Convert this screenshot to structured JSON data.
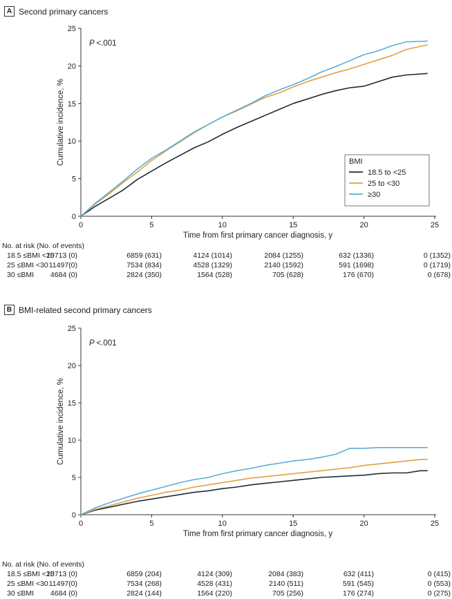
{
  "panels": [
    {
      "letter": "A",
      "title": "Second primary cancers",
      "pvalue_italic": "P",
      "pvalue_rest": "<.001",
      "ylabel": "Cumulative incidence, %",
      "xlabel": "Time from first primary cancer diagnosis, y",
      "risk_title": "No. at risk (No. of events)",
      "risk_rows": [
        {
          "label": "18.5 ≤BMI <25",
          "cells": [
            "10713 (0)",
            "6859 (631)",
            "4124 (1014)",
            "2084 (1255)",
            "632 (1336)",
            "0 (1352)"
          ]
        },
        {
          "label": "25 ≤BMI <30",
          "cells": [
            "11497(0)",
            "7534 (834)",
            "4528 (1329)",
            "2140 (1592)",
            "591 (1698)",
            "0 (1719)"
          ]
        },
        {
          "label": "30 ≤BMI",
          "cells": [
            "4684 (0)",
            "2824 (350)",
            "1564 (528)",
            "705 (628)",
            "176 (670)",
            "0 (678)"
          ]
        }
      ]
    },
    {
      "letter": "B",
      "title": "BMI-related second primary cancers",
      "pvalue_italic": "P",
      "pvalue_rest": "<.001",
      "ylabel": "Cumulative incidence, %",
      "xlabel": "Time from first primary cancer diagnosis, y",
      "risk_title": "No. at risk (No. of events)",
      "risk_rows": [
        {
          "label": "18.5 ≤BMI <25",
          "cells": [
            "10713 (0)",
            "6859 (204)",
            "4124 (309)",
            "2084 (383)",
            "632 (411)",
            "0 (415)"
          ]
        },
        {
          "label": "25 ≤BMI <30",
          "cells": [
            "11497(0)",
            "7534 (268)",
            "4528 (431)",
            "2140 (511)",
            "591 (545)",
            "0 (553)"
          ]
        },
        {
          "label": "30 ≤BMI",
          "cells": [
            "4684 (0)",
            "2824 (144)",
            "1564 (220)",
            "705 (256)",
            "176 (274)",
            "0 (275)"
          ]
        }
      ]
    }
  ],
  "legend": {
    "title": "BMI",
    "entries": [
      "18.5 to <25",
      "25 to <30",
      "≥30"
    ]
  },
  "colors": {
    "normal": "#1b2a3a",
    "overweight": "#e0a040",
    "obese": "#5aaed6",
    "axis": "#333333"
  },
  "chart_data": [
    {
      "type": "line",
      "title": "Second primary cancers",
      "xlabel": "Time from first primary cancer diagnosis, y",
      "ylabel": "Cumulative incidence, %",
      "xlim": [
        0,
        25
      ],
      "ylim": [
        0,
        25
      ],
      "xticks": [
        0,
        5,
        10,
        15,
        20,
        25
      ],
      "yticks": [
        0,
        5,
        10,
        15,
        20,
        25
      ],
      "legend": "right",
      "series": [
        {
          "name": "18.5 to <25",
          "color": "#1b2a3a",
          "x": [
            0,
            1,
            2,
            3,
            4,
            5,
            6,
            7,
            8,
            9,
            10,
            11,
            12,
            13,
            14,
            15,
            16,
            17,
            18,
            19,
            20,
            21,
            22,
            23,
            24.5
          ],
          "y": [
            0,
            1.3,
            2.4,
            3.5,
            4.9,
            6.0,
            7.1,
            8.1,
            9.1,
            9.9,
            10.9,
            11.8,
            12.6,
            13.4,
            14.2,
            15.0,
            15.6,
            16.2,
            16.7,
            17.1,
            17.3,
            17.9,
            18.5,
            18.8,
            19.0
          ]
        },
        {
          "name": "25 to <30",
          "color": "#e0a040",
          "x": [
            0,
            1,
            2,
            3,
            4,
            5,
            6,
            7,
            8,
            9,
            10,
            11,
            12,
            13,
            14,
            15,
            16,
            17,
            18,
            19,
            20,
            21,
            22,
            23,
            24.5
          ],
          "y": [
            0,
            1.6,
            3.0,
            4.5,
            5.9,
            7.4,
            8.7,
            9.9,
            11.1,
            12.2,
            13.2,
            14.0,
            14.9,
            15.8,
            16.4,
            17.2,
            17.9,
            18.5,
            19.1,
            19.6,
            20.2,
            20.8,
            21.4,
            22.2,
            22.8
          ]
        },
        {
          "name": "≥30",
          "color": "#5aaed6",
          "x": [
            0,
            1,
            2,
            3,
            4,
            5,
            6,
            7,
            8,
            9,
            10,
            11,
            12,
            13,
            14,
            15,
            16,
            17,
            18,
            19,
            20,
            21,
            22,
            23,
            24.5
          ],
          "y": [
            0,
            1.7,
            3.2,
            4.7,
            6.3,
            7.7,
            8.8,
            10.0,
            11.2,
            12.2,
            13.2,
            14.1,
            15.0,
            16.0,
            16.8,
            17.5,
            18.3,
            19.2,
            19.9,
            20.7,
            21.5,
            22.0,
            22.7,
            23.2,
            23.3
          ]
        }
      ]
    },
    {
      "type": "line",
      "title": "BMI-related second primary cancers",
      "xlabel": "Time from first primary cancer diagnosis, y",
      "ylabel": "Cumulative incidence, %",
      "xlim": [
        0,
        25
      ],
      "ylim": [
        0,
        25
      ],
      "xticks": [
        0,
        5,
        10,
        15,
        20,
        25
      ],
      "yticks": [
        0,
        5,
        10,
        15,
        20,
        25
      ],
      "series": [
        {
          "name": "18.5 to <25",
          "color": "#1b2a3a",
          "x": [
            0,
            1,
            2,
            3,
            4,
            5,
            6,
            7,
            8,
            9,
            10,
            11,
            12,
            13,
            14,
            15,
            16,
            17,
            18,
            19,
            20,
            21,
            22,
            23,
            24,
            24.5
          ],
          "y": [
            0,
            0.6,
            1.0,
            1.4,
            1.8,
            2.1,
            2.4,
            2.7,
            3.0,
            3.2,
            3.5,
            3.7,
            4.0,
            4.2,
            4.4,
            4.6,
            4.8,
            5.0,
            5.1,
            5.2,
            5.3,
            5.5,
            5.6,
            5.6,
            5.9,
            5.9
          ]
        },
        {
          "name": "25 to <30",
          "color": "#e0a040",
          "x": [
            0,
            1,
            2,
            3,
            4,
            5,
            6,
            7,
            8,
            9,
            10,
            11,
            12,
            13,
            14,
            15,
            16,
            17,
            18,
            19,
            20,
            21,
            22,
            23,
            24,
            24.5
          ],
          "y": [
            0,
            0.7,
            1.2,
            1.7,
            2.2,
            2.6,
            3.0,
            3.3,
            3.7,
            4.0,
            4.3,
            4.6,
            4.9,
            5.1,
            5.3,
            5.5,
            5.7,
            5.9,
            6.1,
            6.3,
            6.6,
            6.8,
            7.0,
            7.2,
            7.4,
            7.4
          ]
        },
        {
          "name": "≥30",
          "color": "#5aaed6",
          "x": [
            0,
            1,
            2,
            3,
            4,
            5,
            6,
            7,
            8,
            9,
            10,
            11,
            12,
            13,
            14,
            15,
            16,
            17,
            18,
            19,
            20,
            21,
            22,
            23,
            24,
            24.5
          ],
          "y": [
            0,
            0.9,
            1.6,
            2.2,
            2.8,
            3.3,
            3.8,
            4.3,
            4.7,
            5.0,
            5.5,
            5.9,
            6.2,
            6.6,
            6.9,
            7.2,
            7.4,
            7.7,
            8.1,
            8.9,
            8.9,
            9.0,
            9.0,
            9.0,
            9.0,
            9.0
          ]
        }
      ]
    }
  ]
}
